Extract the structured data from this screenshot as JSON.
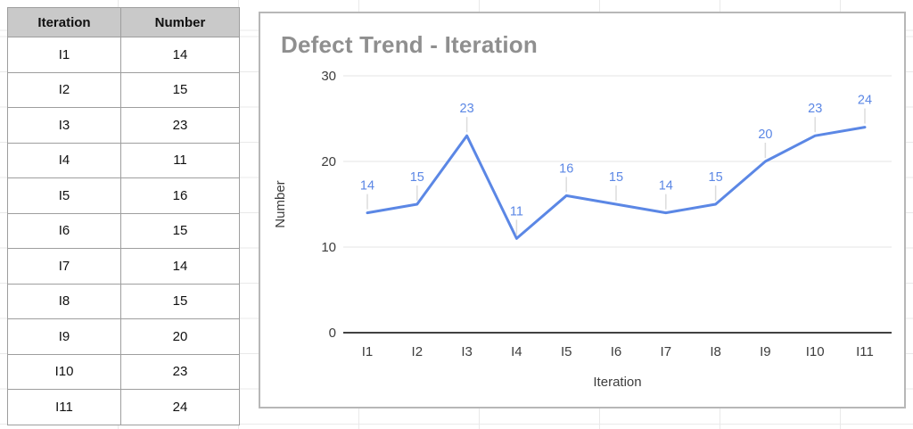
{
  "table": {
    "headers": [
      "Iteration",
      "Number"
    ],
    "rows": [
      [
        "I1",
        14
      ],
      [
        "I2",
        15
      ],
      [
        "I3",
        23
      ],
      [
        "I4",
        11
      ],
      [
        "I5",
        16
      ],
      [
        "I6",
        15
      ],
      [
        "I7",
        14
      ],
      [
        "I8",
        15
      ],
      [
        "I9",
        20
      ],
      [
        "I10",
        23
      ],
      [
        "I11",
        24
      ]
    ]
  },
  "chart_data": {
    "type": "line",
    "title": "Defect Trend - Iteration",
    "categories": [
      "I1",
      "I2",
      "I3",
      "I4",
      "I5",
      "I6",
      "I7",
      "I8",
      "I9",
      "I10",
      "I11"
    ],
    "series": [
      {
        "name": "Number",
        "values": [
          14,
          15,
          23,
          11,
          16,
          15,
          14,
          15,
          20,
          23,
          24
        ]
      }
    ],
    "data_labels": [
      14,
      15,
      23,
      11,
      16,
      15,
      14,
      15,
      20,
      23,
      24
    ],
    "xlabel": "Iteration",
    "ylabel": "Number",
    "ylim": [
      0,
      30
    ],
    "yticks": [
      0,
      10,
      20,
      30
    ],
    "grid": true,
    "legend": "none",
    "colors": {
      "line": "#5b87e5",
      "data_label": "#5b87e5",
      "title": "#8f8f8f",
      "axis_text": "#3d3d3d",
      "gridline": "#e4e4e4",
      "baseline": "#424242",
      "leader": "#dcdcdc"
    }
  }
}
